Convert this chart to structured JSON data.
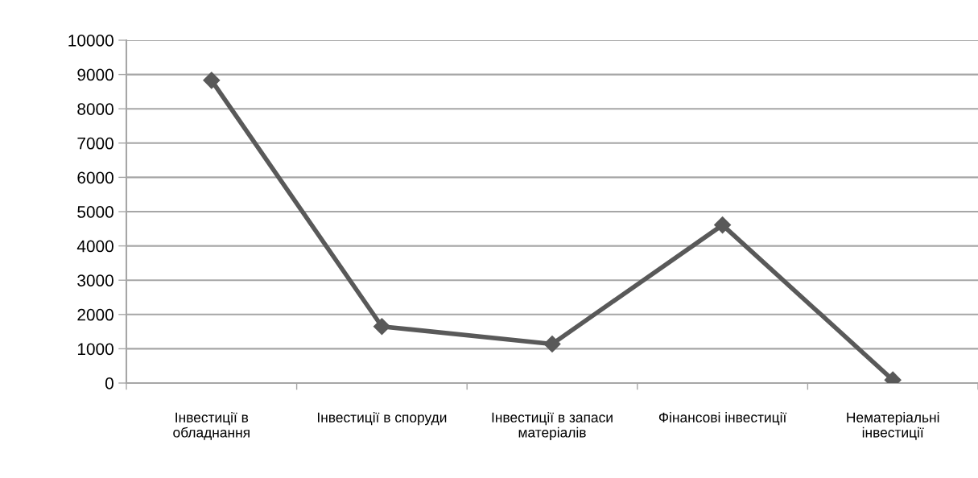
{
  "chart_data": {
    "type": "line",
    "categories": [
      "Інвестиції в\nобладнання",
      "Інвестиції в споруди",
      "Інвестиції в запаси\nматеріалів",
      "Фінансові інвестиції",
      "Нематеріальні\nінвестиції"
    ],
    "series": [
      {
        "color": "#595959",
        "values": [
          8830,
          1650,
          1140,
          4610,
          90
        ]
      }
    ],
    "ylim": [
      0,
      10000
    ],
    "yticks": [
      0,
      1000,
      2000,
      3000,
      4000,
      5000,
      6000,
      7000,
      8000,
      9000,
      10000
    ],
    "grid": "y",
    "marker": "diamond",
    "line_style": "solid"
  }
}
